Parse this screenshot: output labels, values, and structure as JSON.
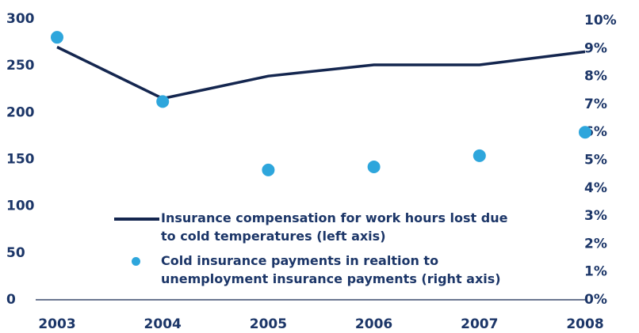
{
  "chart_data": {
    "type": "line",
    "categories": [
      "2003",
      "2004",
      "2005",
      "2006",
      "2007",
      "2008"
    ],
    "series": [
      {
        "name": "Insurance compensation for work hours lost due to cold temperatures (left axis)",
        "type": "line",
        "color": "#14264f",
        "values": [
          270,
          215,
          239,
          251,
          251,
          265
        ]
      },
      {
        "name": "Cold insurance payments in realtion to unemployment insurance payments (right axis)",
        "type": "scatter",
        "axis": "y2",
        "color": "#2ea6dc",
        "values": [
          9.4,
          7.1,
          4.65,
          4.76,
          5.16,
          6.0
        ]
      }
    ],
    "ylim": [
      0,
      300
    ],
    "yticks": [
      0,
      50,
      100,
      150,
      200,
      250,
      300
    ],
    "y2lim": [
      0,
      10
    ],
    "y2ticks": [
      {
        "value": 0,
        "label": "0%"
      },
      {
        "value": 1,
        "label": "1%"
      },
      {
        "value": 2,
        "label": "2%"
      },
      {
        "value": 3,
        "label": "3%"
      },
      {
        "value": 4,
        "label": "4%"
      },
      {
        "value": 5,
        "label": "5%"
      },
      {
        "value": 6,
        "label": "6%"
      },
      {
        "value": 7,
        "label": "7%"
      },
      {
        "value": 8,
        "label": "8%"
      },
      {
        "value": 9,
        "label": "9%"
      },
      {
        "value": 10,
        "label": "10%"
      }
    ],
    "grid": false
  }
}
